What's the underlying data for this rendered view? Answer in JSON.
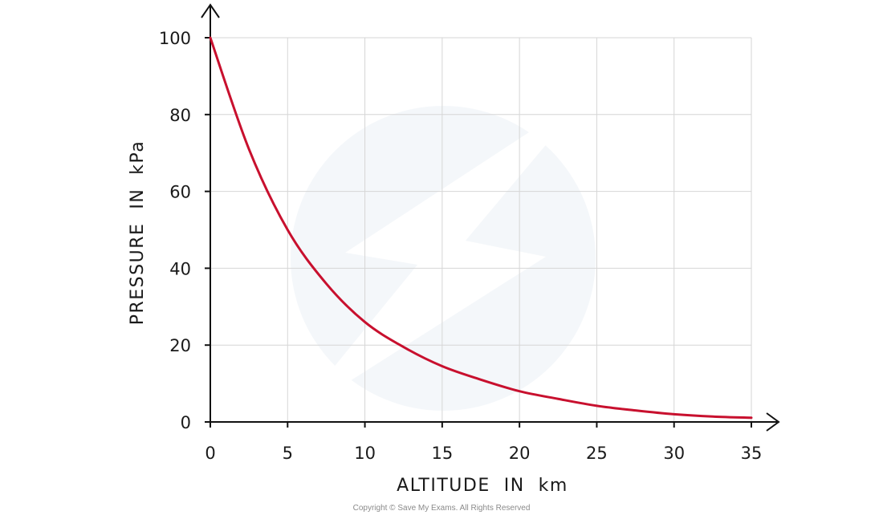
{
  "chart_data": {
    "type": "line",
    "xlabel": "ALTITUDE  IN  km",
    "ylabel": "PRESSURE  IN  kPa",
    "xlim": [
      0,
      35
    ],
    "ylim": [
      0,
      100
    ],
    "x_ticks": [
      "0",
      "5",
      "10",
      "15",
      "20",
      "25",
      "30",
      "35"
    ],
    "y_ticks": [
      "0",
      "20",
      "40",
      "60",
      "80",
      "100"
    ],
    "grid": true,
    "series": [
      {
        "color": "#c8102e",
        "points": [
          [
            0,
            100
          ],
          [
            2.5,
            71
          ],
          [
            5,
            50
          ],
          [
            7.5,
            36
          ],
          [
            10,
            26
          ],
          [
            12.5,
            19.5
          ],
          [
            15,
            14.5
          ],
          [
            17.5,
            11
          ],
          [
            20,
            8
          ],
          [
            22.5,
            6
          ],
          [
            25,
            4.2
          ],
          [
            27.5,
            3
          ],
          [
            30,
            2
          ],
          [
            32.5,
            1.4
          ],
          [
            35,
            1.1
          ]
        ]
      }
    ]
  },
  "footer": {
    "copyright": "Copyright © Save My Exams. All Rights Reserved"
  }
}
